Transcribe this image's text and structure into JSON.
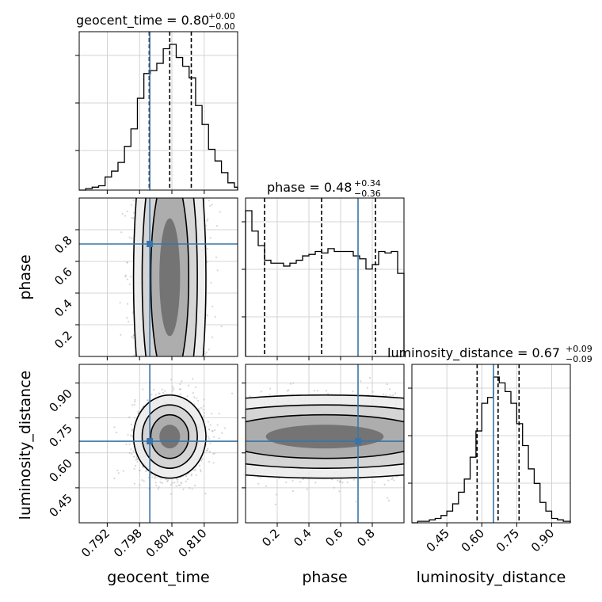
{
  "chart_data": {
    "type": "corner",
    "parameters": [
      "geocent_time",
      "phase",
      "luminosity_distance"
    ],
    "truth": {
      "geocent_time": 0.7999,
      "phase": 0.71,
      "luminosity_distance": 0.65
    },
    "colors": {
      "truth": "#3874a8",
      "hist": "#000000",
      "quantile": "#000000",
      "grid": "#c8c8c8",
      "points": "#b4b4b4"
    },
    "titles": {
      "geocent_time": {
        "text": "geocent_time = 0.80",
        "plus": "+0.00",
        "minus": "−0.00"
      },
      "phase": {
        "text": "phase = 0.48",
        "plus": "+0.34",
        "minus": "−0.36"
      },
      "luminosity_distance": {
        "text": "luminosity_distance = 0.67",
        "plus": "+0.09",
        "minus": "−0.09"
      }
    },
    "axis_labels": {
      "x": [
        "geocent_time",
        "phase",
        "luminosity_distance"
      ],
      "y": [
        "phase",
        "luminosity_distance"
      ]
    },
    "ranges": {
      "geocent_time": [
        0.7868,
        0.8162
      ],
      "phase": [
        0.0,
        1.0
      ],
      "luminosity_distance": [
        0.3,
        0.98
      ]
    },
    "ticks": {
      "geocent_time": [
        0.792,
        0.798,
        0.804,
        0.81
      ],
      "phase_x": [
        0.2,
        0.4,
        0.6,
        0.8
      ],
      "phase_y": [
        0.2,
        0.4,
        0.6,
        0.8
      ],
      "luminosity_distance": [
        0.45,
        0.6,
        0.75,
        0.9
      ]
    },
    "tick_labels": {
      "geocent_time": [
        "0.792",
        "0.798",
        "0.804",
        "0.810"
      ],
      "phase_x": [
        "0.2",
        "0.4",
        "0.6",
        "0.8"
      ],
      "phase_y": [
        "0.2",
        "0.4",
        "0.6",
        "0.8"
      ],
      "luminosity_distance": [
        "0.45",
        "0.60",
        "0.75",
        "0.90"
      ]
    },
    "quantiles": {
      "geocent_time": [
        0.7998,
        0.8036,
        0.8076
      ],
      "phase": [
        0.12,
        0.48,
        0.82
      ],
      "luminosity_distance": [
        0.58,
        0.67,
        0.76
      ]
    },
    "histograms": {
      "geocent_time": {
        "bins": [
          0.7868,
          0.788,
          0.7892,
          0.7904,
          0.7916,
          0.7928,
          0.794,
          0.7952,
          0.7964,
          0.7976,
          0.7988,
          0.8,
          0.8012,
          0.8024,
          0.8036,
          0.8048,
          0.806,
          0.8072,
          0.8084,
          0.8096,
          0.8108,
          0.812,
          0.8132,
          0.8144,
          0.8156,
          0.8162
        ],
        "counts": [
          0.0,
          0.01,
          0.02,
          0.03,
          0.09,
          0.13,
          0.19,
          0.3,
          0.42,
          0.63,
          0.8,
          0.82,
          0.87,
          0.97,
          1.0,
          0.91,
          0.85,
          0.77,
          0.58,
          0.45,
          0.28,
          0.2,
          0.12,
          0.05,
          0.02
        ]
      },
      "phase": {
        "bins": [
          0.0,
          0.04,
          0.08,
          0.12,
          0.16,
          0.2,
          0.24,
          0.28,
          0.32,
          0.36,
          0.4,
          0.44,
          0.48,
          0.52,
          0.56,
          0.6,
          0.64,
          0.68,
          0.72,
          0.76,
          0.8,
          0.84,
          0.88,
          0.92,
          0.96,
          1.0
        ],
        "counts": [
          1.0,
          0.86,
          0.76,
          0.66,
          0.64,
          0.64,
          0.62,
          0.64,
          0.66,
          0.69,
          0.7,
          0.72,
          0.71,
          0.74,
          0.72,
          0.72,
          0.72,
          0.69,
          0.67,
          0.6,
          0.63,
          0.72,
          0.71,
          0.72,
          0.57
        ]
      },
      "luminosity_distance": {
        "bins": [
          0.3,
          0.325,
          0.35,
          0.375,
          0.4,
          0.425,
          0.45,
          0.475,
          0.5,
          0.525,
          0.55,
          0.575,
          0.6,
          0.625,
          0.65,
          0.675,
          0.7,
          0.725,
          0.75,
          0.775,
          0.8,
          0.825,
          0.85,
          0.875,
          0.9,
          0.925,
          0.95,
          0.98
        ],
        "counts": [
          0.0,
          0.01,
          0.01,
          0.02,
          0.03,
          0.05,
          0.08,
          0.13,
          0.21,
          0.3,
          0.45,
          0.63,
          0.82,
          0.86,
          1.0,
          0.96,
          0.9,
          0.82,
          0.68,
          0.53,
          0.37,
          0.27,
          0.14,
          0.08,
          0.03,
          0.02,
          0.01
        ]
      }
    },
    "densities": {
      "geocent_time_phase": {
        "x_center": 0.8036,
        "x_sd": 0.0032,
        "y_center": 0.5,
        "y_sd": 0.3,
        "y_uniform": true
      },
      "geocent_time_luminosity_distance": {
        "x_center": 0.8036,
        "x_sd": 0.0032,
        "y_center": 0.67,
        "y_sd": 0.085
      },
      "phase_luminosity_distance": {
        "x_center": 0.5,
        "x_sd": 0.3,
        "x_uniform": true,
        "y_center": 0.67,
        "y_sd": 0.085
      }
    }
  }
}
